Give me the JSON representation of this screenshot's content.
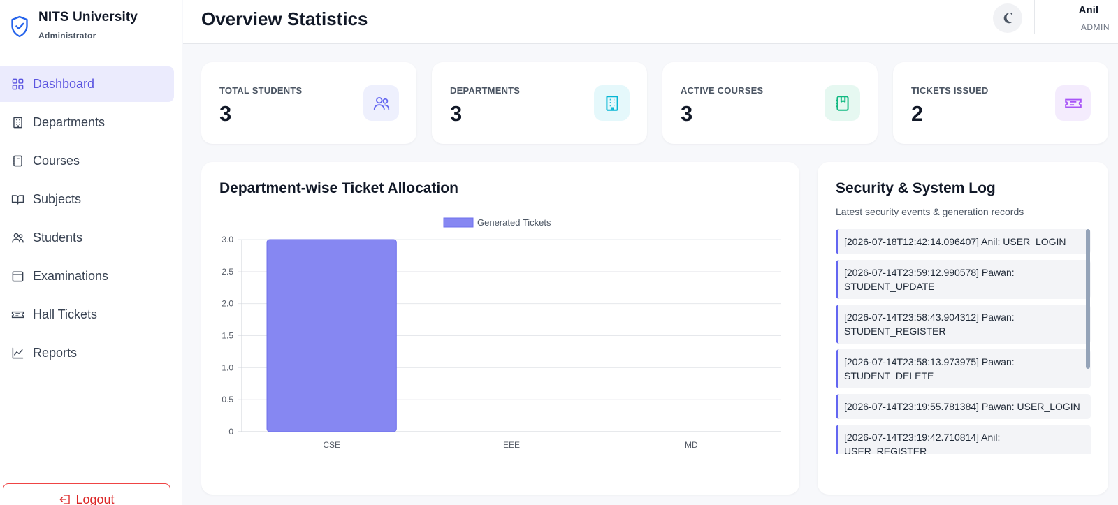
{
  "brand": {
    "name": "NITS University",
    "role": "Administrator"
  },
  "nav": {
    "items": [
      {
        "label": "Dashboard",
        "icon": "grid-icon",
        "active": true
      },
      {
        "label": "Departments",
        "icon": "building-icon",
        "active": false
      },
      {
        "label": "Courses",
        "icon": "notebook-icon",
        "active": false
      },
      {
        "label": "Subjects",
        "icon": "book-open-icon",
        "active": false
      },
      {
        "label": "Students",
        "icon": "users-icon",
        "active": false
      },
      {
        "label": "Examinations",
        "icon": "calendar-icon",
        "active": false
      },
      {
        "label": "Hall Tickets",
        "icon": "ticket-icon",
        "active": false
      },
      {
        "label": "Reports",
        "icon": "trend-chart-icon",
        "active": false
      }
    ],
    "logout_label": "Logout"
  },
  "header": {
    "title": "Overview Statistics",
    "user_name": "Anil",
    "user_role": "ADMIN"
  },
  "stats": [
    {
      "label": "TOTAL STUDENTS",
      "value": "3",
      "icon": "users-icon",
      "color": "#6366f1",
      "bg": "#eef0fd"
    },
    {
      "label": "DEPARTMENTS",
      "value": "3",
      "icon": "building-icon",
      "color": "#06b6d4",
      "bg": "#e5f8fb"
    },
    {
      "label": "ACTIVE COURSES",
      "value": "3",
      "icon": "notebook-icon",
      "color": "#10b981",
      "bg": "#e6f8f1"
    },
    {
      "label": "TICKETS ISSUED",
      "value": "2",
      "icon": "ticket-icon",
      "color": "#a855f7",
      "bg": "#f4ecfd"
    }
  ],
  "chart_panel": {
    "title": "Department-wise Ticket Allocation"
  },
  "chart_data": {
    "type": "bar",
    "categories": [
      "CSE",
      "EEE",
      "MD"
    ],
    "series": [
      {
        "name": "Generated Tickets",
        "values": [
          3,
          0,
          0
        ],
        "color": "#8687f2"
      }
    ],
    "yticks": [
      "0",
      "0.5",
      "1.0",
      "1.5",
      "2.0",
      "2.5",
      "3.0"
    ],
    "ylim": [
      0,
      3
    ],
    "legend": "top-center",
    "grid": true
  },
  "log_panel": {
    "title": "Security & System Log",
    "subtitle": "Latest security events & generation records",
    "entries": [
      "[2026-07-18T12:42:14.096407] Anil: USER_LOGIN",
      "[2026-07-14T23:59:12.990578] Pawan: STUDENT_UPDATE",
      "[2026-07-14T23:58:43.904312] Pawan: STUDENT_REGISTER",
      "[2026-07-14T23:58:13.973975] Pawan: STUDENT_DELETE",
      "[2026-07-14T23:19:55.781384] Pawan: USER_LOGIN",
      "[2026-07-14T23:19:42.710814] Anil: USER_REGISTER"
    ]
  }
}
